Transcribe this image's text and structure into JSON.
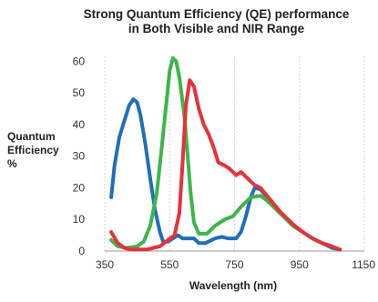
{
  "chart_data": {
    "type": "line",
    "title_lines": [
      "Strong Quantum Efficiency (QE) performance",
      "in Both Visible and NIR Range"
    ],
    "xlabel": "Wavelength (nm)",
    "ylabel_lines": [
      "Quantum",
      "Efficiency",
      "%"
    ],
    "xlim": [
      350,
      1150
    ],
    "ylim": [
      0,
      65
    ],
    "x_ticks": [
      350,
      550,
      750,
      950,
      1150
    ],
    "y_ticks": [
      0,
      10,
      20,
      30,
      40,
      50,
      60
    ],
    "grid": {
      "x": "dotted vertical",
      "y": "none"
    },
    "legend": "none",
    "series": [
      {
        "color": "#1f6fba",
        "points": [
          [
            370,
            17
          ],
          [
            380,
            27
          ],
          [
            395,
            36
          ],
          [
            410,
            41
          ],
          [
            425,
            46
          ],
          [
            438,
            48
          ],
          [
            450,
            47
          ],
          [
            460,
            43
          ],
          [
            475,
            34
          ],
          [
            490,
            23
          ],
          [
            505,
            13
          ],
          [
            520,
            6
          ],
          [
            530,
            3
          ],
          [
            545,
            3
          ],
          [
            560,
            4
          ],
          [
            575,
            5
          ],
          [
            590,
            4
          ],
          [
            605,
            4
          ],
          [
            625,
            4
          ],
          [
            640,
            2.5
          ],
          [
            660,
            2.5
          ],
          [
            690,
            4
          ],
          [
            710,
            4.5
          ],
          [
            730,
            4
          ],
          [
            755,
            4
          ],
          [
            770,
            6
          ],
          [
            785,
            11
          ],
          [
            800,
            17
          ],
          [
            812,
            20
          ],
          [
            830,
            19.5
          ],
          [
            850,
            17
          ],
          [
            870,
            14
          ],
          [
            890,
            12
          ],
          [
            910,
            10
          ],
          [
            930,
            8
          ],
          [
            960,
            6
          ],
          [
            990,
            4
          ],
          [
            1020,
            2.5
          ],
          [
            1050,
            1
          ],
          [
            1075,
            0.5
          ]
        ]
      },
      {
        "color": "#3db54a",
        "points": [
          [
            370,
            3.5
          ],
          [
            390,
            1.5
          ],
          [
            420,
            1
          ],
          [
            450,
            1.5
          ],
          [
            470,
            3
          ],
          [
            490,
            8
          ],
          [
            510,
            18
          ],
          [
            525,
            32
          ],
          [
            540,
            47
          ],
          [
            550,
            57
          ],
          [
            560,
            61
          ],
          [
            570,
            60
          ],
          [
            580,
            55
          ],
          [
            595,
            43
          ],
          [
            605,
            31
          ],
          [
            615,
            18
          ],
          [
            625,
            9
          ],
          [
            640,
            5.5
          ],
          [
            665,
            5.5
          ],
          [
            690,
            8
          ],
          [
            720,
            10
          ],
          [
            745,
            11
          ],
          [
            770,
            14
          ],
          [
            800,
            17
          ],
          [
            830,
            17.5
          ],
          [
            850,
            16
          ],
          [
            870,
            14
          ],
          [
            890,
            12
          ],
          [
            910,
            10
          ],
          [
            930,
            8
          ],
          [
            960,
            6
          ],
          [
            990,
            4
          ],
          [
            1020,
            2.5
          ],
          [
            1050,
            1.5
          ],
          [
            1075,
            0.5
          ]
        ]
      },
      {
        "color": "#e63239",
        "points": [
          [
            370,
            6
          ],
          [
            390,
            2.5
          ],
          [
            410,
            1
          ],
          [
            430,
            0.5
          ],
          [
            450,
            0.5
          ],
          [
            480,
            0.5
          ],
          [
            500,
            1
          ],
          [
            520,
            1.5
          ],
          [
            545,
            3.5
          ],
          [
            565,
            5
          ],
          [
            580,
            12
          ],
          [
            590,
            28
          ],
          [
            600,
            46
          ],
          [
            612,
            54
          ],
          [
            625,
            52
          ],
          [
            640,
            45
          ],
          [
            655,
            40
          ],
          [
            670,
            37
          ],
          [
            685,
            33
          ],
          [
            700,
            28
          ],
          [
            720,
            27
          ],
          [
            735,
            26
          ],
          [
            755,
            24
          ],
          [
            770,
            25
          ],
          [
            790,
            23
          ],
          [
            810,
            21
          ],
          [
            830,
            20
          ],
          [
            850,
            17.5
          ],
          [
            870,
            15
          ],
          [
            890,
            12.5
          ],
          [
            910,
            10.5
          ],
          [
            930,
            8.5
          ],
          [
            960,
            6
          ],
          [
            990,
            4
          ],
          [
            1020,
            2.5
          ],
          [
            1050,
            1.5
          ],
          [
            1075,
            0.5
          ]
        ]
      }
    ]
  }
}
